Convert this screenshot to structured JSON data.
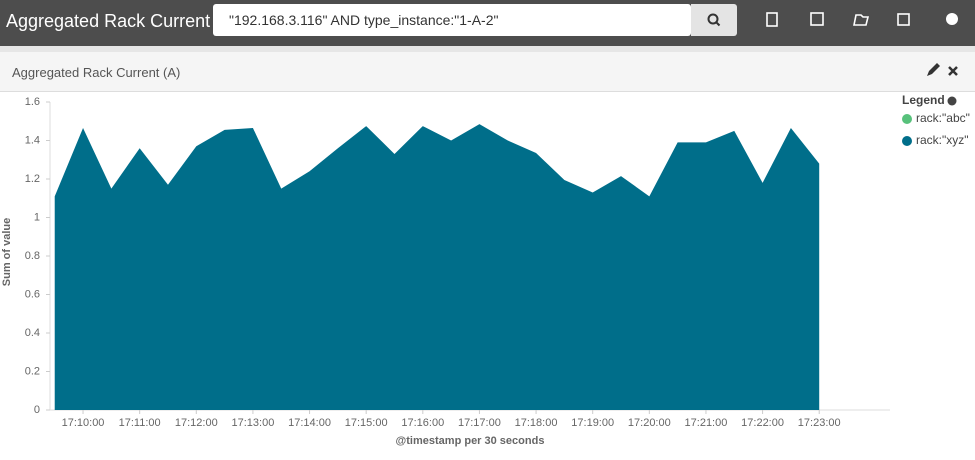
{
  "header": {
    "title": "Aggregated Rack Current",
    "query": "\"192.168.3.116\" AND type_instance:\"1-A-2\""
  },
  "panel": {
    "title": "Aggregated Rack Current (A)"
  },
  "chart_data": {
    "type": "area",
    "ylabel": "Sum of value",
    "xlabel": "@timestamp per 30 seconds",
    "x": [
      "17:09:30",
      "17:10:00",
      "17:10:30",
      "17:11:00",
      "17:11:30",
      "17:12:00",
      "17:12:30",
      "17:13:00",
      "17:13:30",
      "17:14:00",
      "17:14:30",
      "17:15:00",
      "17:15:30",
      "17:16:00",
      "17:16:30",
      "17:17:00",
      "17:17:30",
      "17:18:00",
      "17:18:30",
      "17:19:00",
      "17:19:30",
      "17:20:00",
      "17:20:30",
      "17:21:00",
      "17:21:30",
      "17:22:00",
      "17:22:30",
      "17:23:00"
    ],
    "series": [
      {
        "name": "rack:\"xyz\"",
        "color": "#006e8a",
        "values": [
          1.11,
          1.465,
          1.15,
          1.36,
          1.17,
          1.37,
          1.455,
          1.465,
          1.15,
          1.24,
          1.36,
          1.475,
          1.33,
          1.475,
          1.4,
          1.485,
          1.4,
          1.335,
          1.195,
          1.13,
          1.215,
          1.11,
          1.39,
          1.39,
          1.45,
          1.18,
          1.465,
          1.28
        ]
      }
    ],
    "xlim": [
      "17:09:25",
      "17:24:15"
    ],
    "xticks": [
      "17:10:00",
      "17:11:00",
      "17:12:00",
      "17:13:00",
      "17:14:00",
      "17:15:00",
      "17:16:00",
      "17:17:00",
      "17:18:00",
      "17:19:00",
      "17:20:00",
      "17:21:00",
      "17:22:00",
      "17:23:00"
    ],
    "ylim": [
      0,
      1.6
    ],
    "yticks": [
      0,
      0.2,
      0.4,
      0.6,
      0.8,
      1,
      1.2,
      1.4,
      1.6
    ],
    "legend": {
      "title": "Legend",
      "entries": [
        {
          "name": "rack:\"abc\"",
          "color": "#57c17b"
        },
        {
          "name": "rack:\"xyz\"",
          "color": "#006e8a"
        }
      ]
    }
  }
}
